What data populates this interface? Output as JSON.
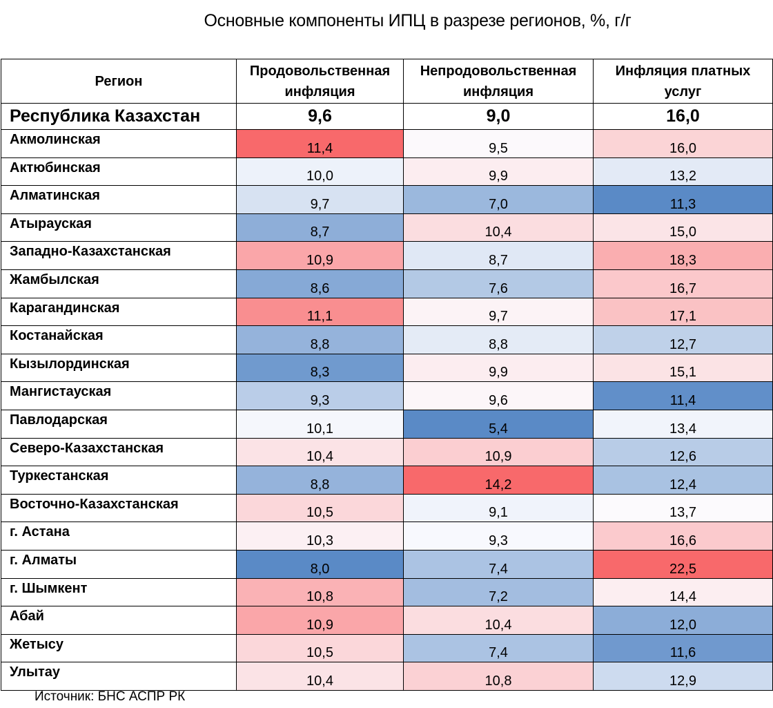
{
  "chart_data": {
    "type": "table",
    "title": "Основные компоненты ИПЦ в разрезе регионов, %, г/г",
    "columns": [
      "Регион",
      "Продовольственная инфляция",
      "Непродовольственная инфляция",
      "Инфляция платных услуг"
    ],
    "columns_lines": [
      [
        "Регион"
      ],
      [
        "Продовольственная",
        "инфляция"
      ],
      [
        "Непродовольственная",
        "инфляция"
      ],
      [
        "Инфляция платных",
        "услуг"
      ]
    ],
    "total": {
      "region": "Республика Казахстан",
      "values": [
        9.6,
        9.0,
        16.0
      ]
    },
    "rows": [
      {
        "region": "Акмолинская",
        "values": [
          11.4,
          9.5,
          16.0
        ]
      },
      {
        "region": "Актюбинская",
        "values": [
          10.0,
          9.9,
          13.2
        ]
      },
      {
        "region": "Алматинская",
        "values": [
          9.7,
          7.0,
          11.3
        ]
      },
      {
        "region": "Атырауская",
        "values": [
          8.7,
          10.4,
          15.0
        ]
      },
      {
        "region": "Западно-Казахстанская",
        "values": [
          10.9,
          8.7,
          18.3
        ]
      },
      {
        "region": "Жамбылская",
        "values": [
          8.6,
          7.6,
          16.7
        ]
      },
      {
        "region": "Карагандинская",
        "values": [
          11.1,
          9.7,
          17.1
        ]
      },
      {
        "region": "Костанайская",
        "values": [
          8.8,
          8.8,
          12.7
        ]
      },
      {
        "region": "Кызылординская",
        "values": [
          8.3,
          9.9,
          15.1
        ]
      },
      {
        "region": "Мангистауская",
        "values": [
          9.3,
          9.6,
          11.4
        ]
      },
      {
        "region": "Павлодарская",
        "values": [
          10.1,
          5.4,
          13.4
        ]
      },
      {
        "region": "Северо-Казахстанская",
        "values": [
          10.4,
          10.9,
          12.6
        ]
      },
      {
        "region": "Туркестанская",
        "values": [
          8.8,
          14.2,
          12.4
        ]
      },
      {
        "region": "Восточно-Казахстанская",
        "values": [
          10.5,
          9.1,
          13.7
        ]
      },
      {
        "region": "г. Астана",
        "values": [
          10.3,
          9.3,
          16.6
        ]
      },
      {
        "region": "г. Алматы",
        "values": [
          8.0,
          7.4,
          22.5
        ]
      },
      {
        "region": "г. Шымкент",
        "values": [
          10.8,
          7.2,
          14.4
        ]
      },
      {
        "region": "Абай",
        "values": [
          10.9,
          10.4,
          12.0
        ]
      },
      {
        "region": "Жетысу",
        "values": [
          10.5,
          7.4,
          11.6
        ]
      },
      {
        "region": "Улытау",
        "values": [
          10.4,
          10.8,
          12.9
        ]
      }
    ],
    "colors": {
      "high": "#f8696b",
      "mid": "#fcfcff",
      "low": "#5a8ac6"
    }
  },
  "source": "Источник: БНС АСПР РК"
}
